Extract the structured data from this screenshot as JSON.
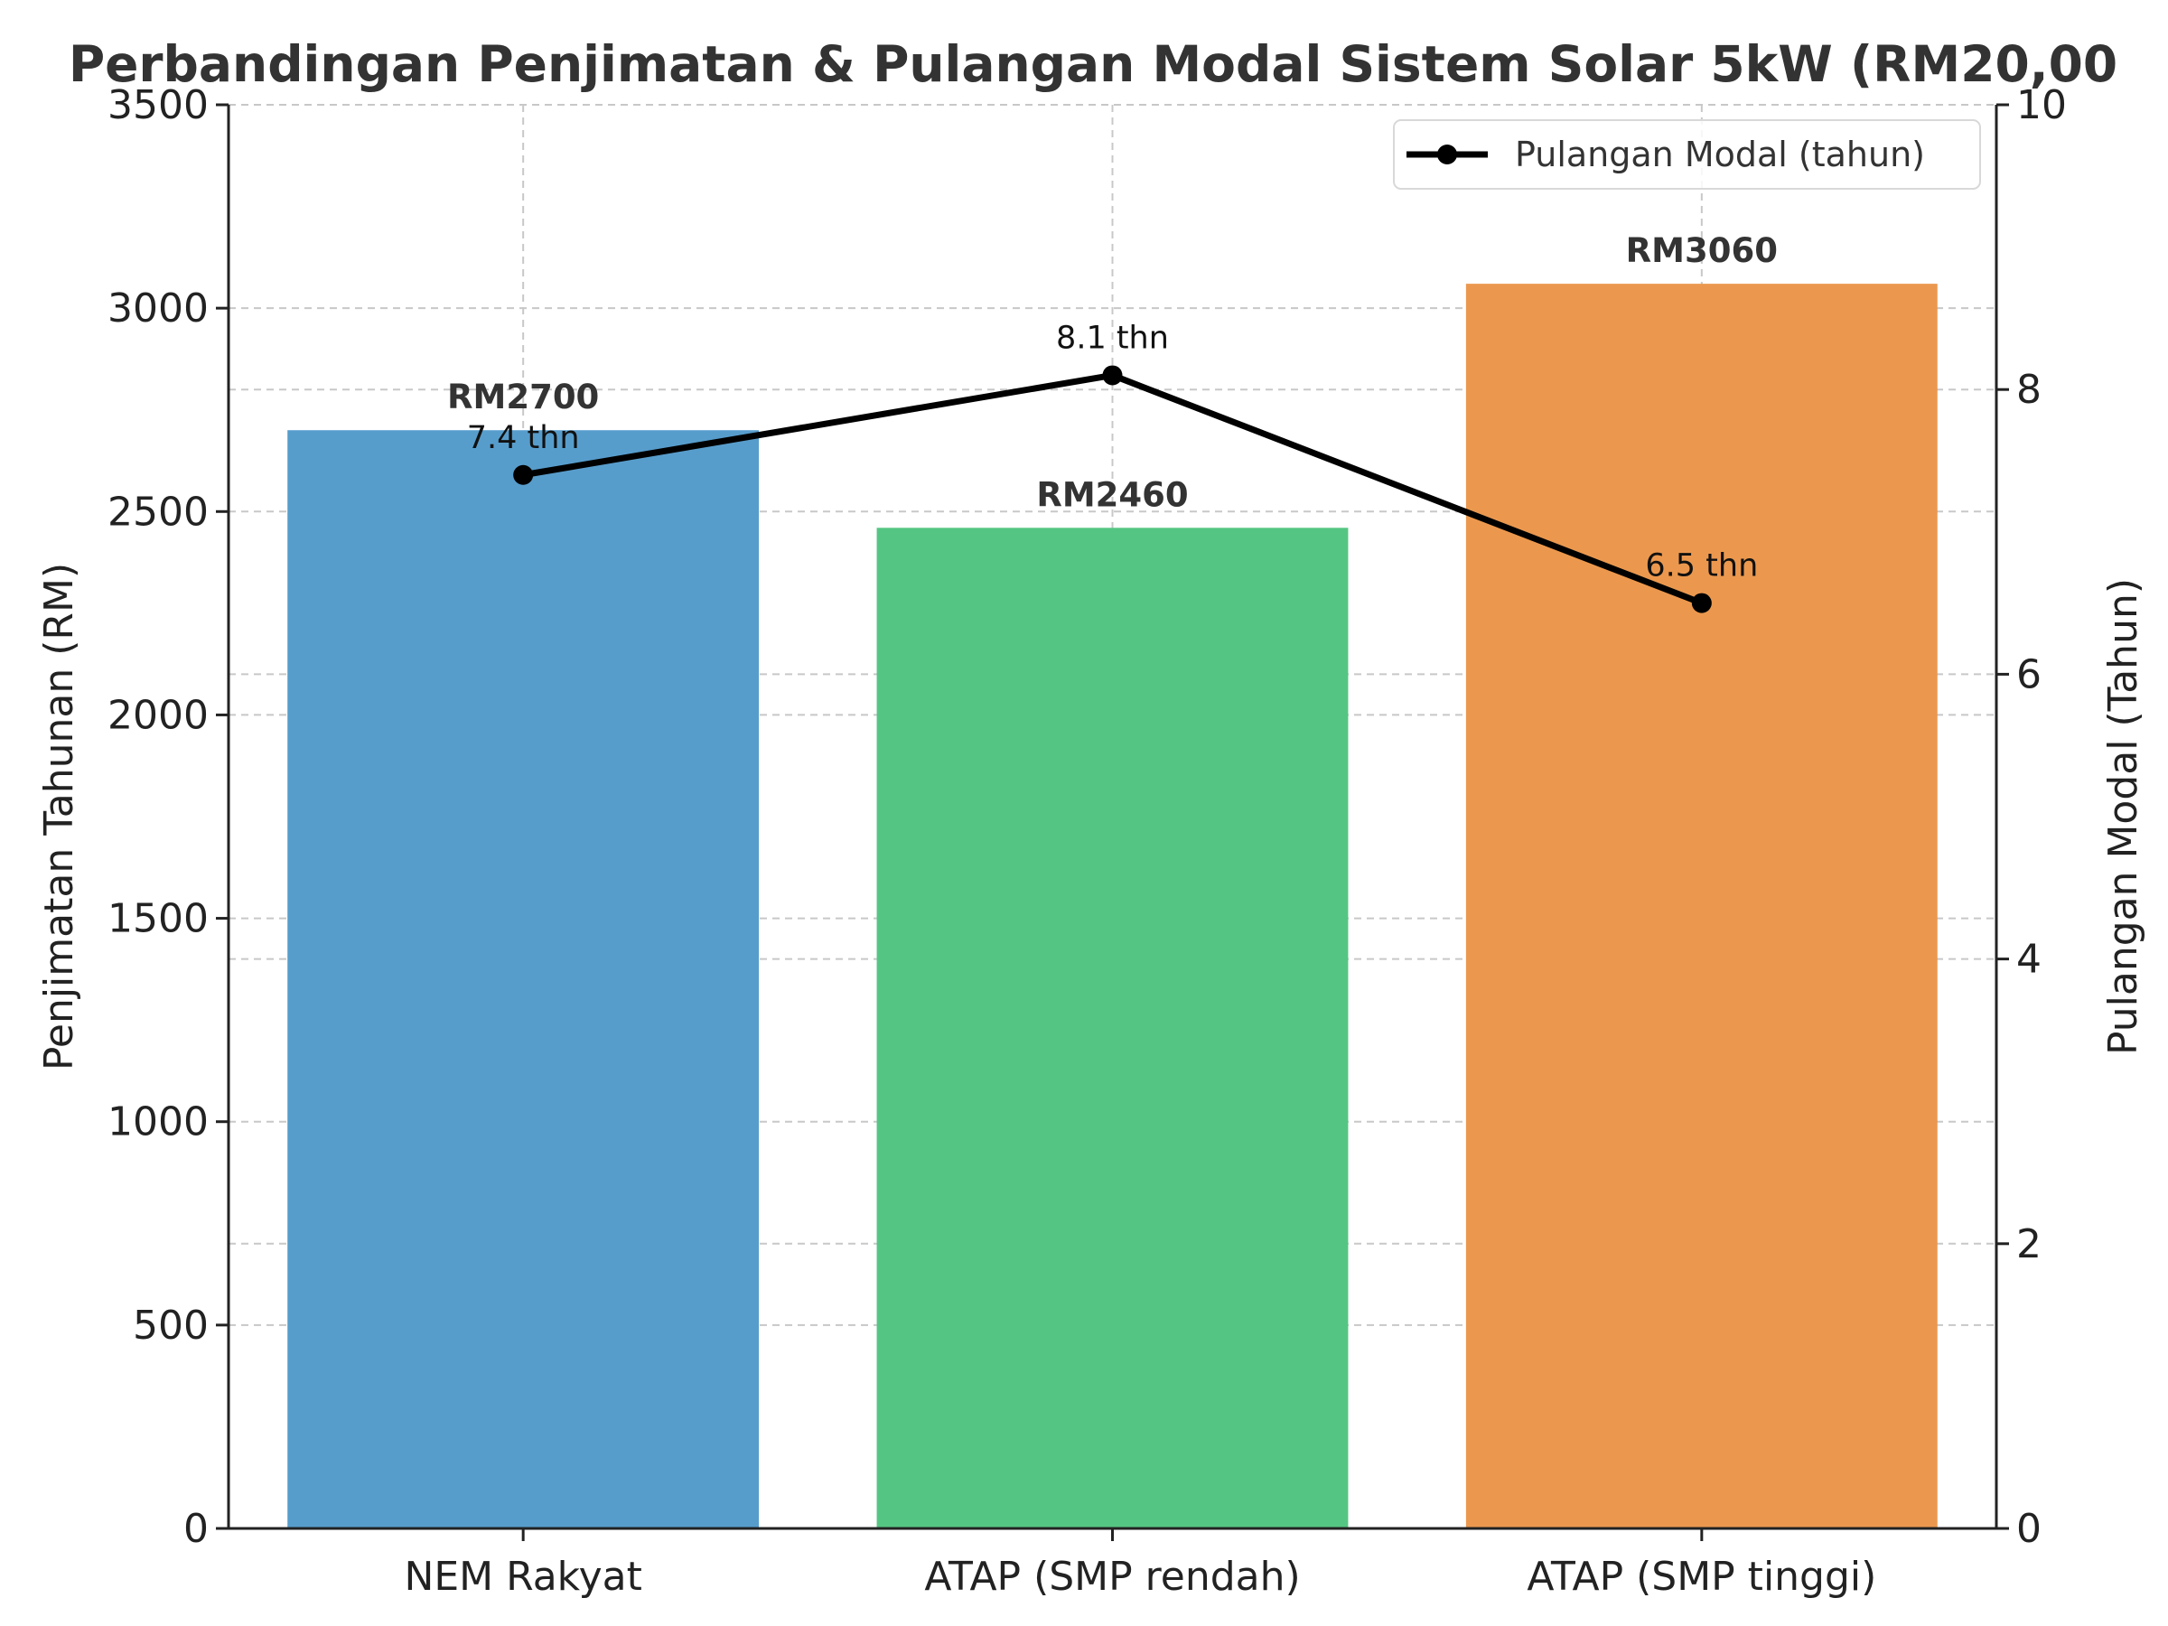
{
  "chart_data": {
    "type": "bar",
    "title": "Perbandingan Penjimatan & Pulangan Modal Sistem Solar 5kW (RM20,00",
    "categories": [
      "NEM Rakyat",
      "ATAP (SMP rendah)",
      "ATAP (SMP tinggi)"
    ],
    "series": [
      {
        "type": "bar",
        "axis": "left",
        "values": [
          2700,
          2460,
          3060
        ],
        "value_labels": [
          "RM2700",
          "RM2460",
          "RM3060"
        ],
        "colors": [
          "#579dcc",
          "#55c583",
          "#eb984e"
        ]
      },
      {
        "type": "line",
        "axis": "right",
        "name": "Pulangan Modal (tahun)",
        "values": [
          7.4,
          8.1,
          6.5
        ],
        "value_labels": [
          "7.4 thn",
          "8.1 thn",
          "6.5 thn"
        ],
        "color": "#000000"
      }
    ],
    "y_left": {
      "label": "Penjimatan Tahunan (RM)",
      "lim": [
        0,
        3500
      ],
      "ticks": [
        0,
        500,
        1000,
        1500,
        2000,
        2500,
        3000,
        3500
      ]
    },
    "y_right": {
      "label": "Pulangan Modal (Tahun)",
      "lim": [
        0,
        10
      ],
      "ticks": [
        0,
        2,
        4,
        6,
        8,
        10
      ]
    },
    "grid": true,
    "legend": "top-right"
  }
}
